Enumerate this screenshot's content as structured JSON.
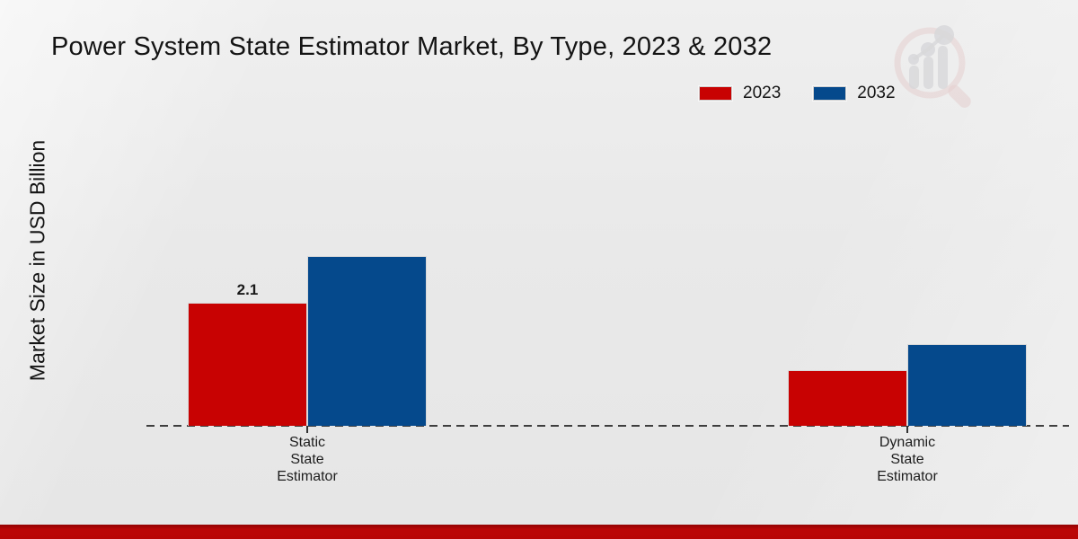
{
  "chart_data": {
    "type": "bar",
    "title": "Power System State Estimator Market, By Type, 2023 & 2032",
    "ylabel": "Market Size in USD Billion",
    "xlabel": "",
    "categories": [
      "Static State Estimator",
      "Dynamic State Estimator"
    ],
    "series": [
      {
        "name": "2023",
        "color": "#c80202",
        "values": [
          2.1,
          0.95
        ]
      },
      {
        "name": "2032",
        "color": "#05498c",
        "values": [
          2.9,
          1.4
        ]
      }
    ],
    "value_labels": [
      [
        "2.1",
        null
      ],
      [
        null,
        null
      ]
    ],
    "ylim": [
      0,
      3.3
    ],
    "grid": false,
    "legend_position": "top-right",
    "baseline_style": "dashed",
    "axis_color": "#1a1a1a"
  },
  "watermark": {
    "icon": "magnifier-bar-chart-logo"
  },
  "footer": {
    "color": "#b80505"
  }
}
